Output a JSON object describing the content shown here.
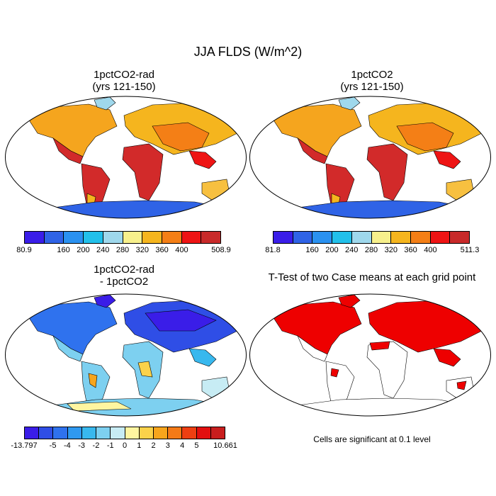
{
  "title": "JJA FLDS (W/m^2)",
  "panels": [
    {
      "id": "p1",
      "title_line1": "1pctCO2-rad",
      "title_line2": "(yrs 121-150)"
    },
    {
      "id": "p2",
      "title_line1": "1pctCO2",
      "title_line2": "(yrs 121-150)"
    },
    {
      "id": "p3",
      "title_line1": "1pctCO2-rad",
      "title_line2": "- 1pctCO2"
    },
    {
      "id": "p4",
      "title_line1": "T-Test of two Case means at each grid point",
      "title_line2": ""
    }
  ],
  "colorbar1": {
    "colors": [
      "#3a1de8",
      "#2f63e6",
      "#2a91f0",
      "#22c0ea",
      "#9fd8ec",
      "#f7f08c",
      "#f5b51e",
      "#f47f16",
      "#ee1414",
      "#c82a2a"
    ],
    "labels": [
      "80.9",
      "160",
      "200",
      "240",
      "280",
      "320",
      "360",
      "400",
      "508.9"
    ]
  },
  "colorbar2": {
    "colors": [
      "#3a1de8",
      "#2f63e6",
      "#2a91f0",
      "#22c0ea",
      "#9fd8ec",
      "#f7f08c",
      "#f5b51e",
      "#f47f16",
      "#ee1414",
      "#c82a2a"
    ],
    "labels": [
      "81.8",
      "160",
      "200",
      "240",
      "280",
      "320",
      "360",
      "400",
      "511.3"
    ]
  },
  "colorbar3": {
    "colors": [
      "#3a1de8",
      "#2f4ee6",
      "#2f72ee",
      "#2f99f0",
      "#38b8ee",
      "#7dd0f0",
      "#c7ecf4",
      "#fff5a0",
      "#fbd24a",
      "#f7a51c",
      "#f47a16",
      "#ee3f12",
      "#e20f0f",
      "#c81e1e"
    ],
    "labels": [
      "-13.797",
      "-5",
      "-4",
      "-3",
      "-2",
      "-1",
      "0",
      "1",
      "2",
      "3",
      "4",
      "5",
      "10.661"
    ]
  },
  "significance_note": "Cells are significant at 0.1 level",
  "significance_color": "#ee0000"
}
